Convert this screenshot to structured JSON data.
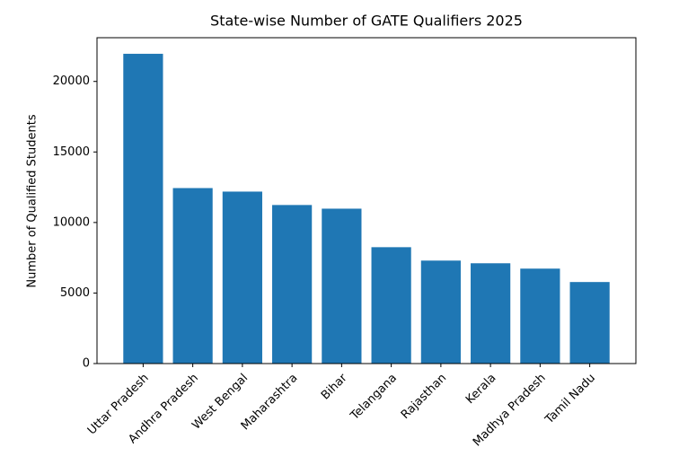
{
  "chart_data": {
    "type": "bar",
    "title": "State-wise Number of GATE Qualifiers 2025",
    "y_label": "Number of Qualified Students",
    "categories": [
      "Uttar Pradesh",
      "Andhra Pradesh",
      "West Bengal",
      "Maharashtra",
      "Bihar",
      "Telangana",
      "Rajasthan",
      "Kerala",
      "Madhya Pradesh",
      "Tamil Nadu"
    ],
    "values": [
      21960,
      12440,
      12190,
      11240,
      10980,
      8250,
      7300,
      7110,
      6730,
      5780
    ],
    "color": "#1f77b4",
    "ylim": [
      0,
      23100
    ],
    "yticks": [
      0,
      5000,
      10000,
      15000,
      20000
    ],
    "grid": false
  }
}
